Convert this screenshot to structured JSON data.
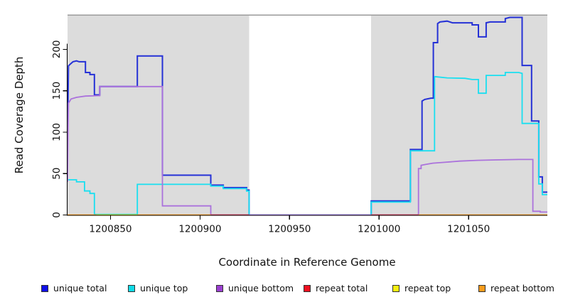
{
  "chart_data": {
    "type": "line",
    "title": "",
    "xlabel": "Coordinate in Reference Genome",
    "ylabel": "Read Coverage Depth",
    "x_ticks": [
      1200850,
      1200900,
      1200950,
      1201000,
      1201050
    ],
    "y_ticks": [
      0,
      50,
      100,
      150,
      200
    ],
    "xlim": [
      1200826,
      1201094
    ],
    "ylim": [
      0,
      241.5
    ],
    "grid": false,
    "panel_color": "#dcdcdc",
    "panel_top_border_color": "#9a9a9a",
    "axis_color": "#000000",
    "panels": [
      {
        "from": 1200826,
        "to": 1200927.4
      },
      {
        "from": 1200995.6,
        "to": 1201094
      }
    ],
    "series": [
      {
        "name": "unique total",
        "color": "#2531d6",
        "width": 2,
        "segments": [
          [
            [
              1200826,
              83
            ],
            [
              1200826.5,
              180
            ],
            [
              1200828,
              183
            ],
            [
              1200829,
              185
            ],
            [
              1200831,
              186
            ],
            [
              1200832.5,
              185
            ],
            [
              1200836,
              185
            ],
            [
              1200836,
              172
            ],
            [
              1200838.5,
              172
            ],
            [
              1200838.5,
              169.5
            ],
            [
              1200841,
              169.5
            ],
            [
              1200841,
              145
            ],
            [
              1200844,
              145
            ],
            [
              1200844,
              155
            ],
            [
              1200865,
              155
            ],
            [
              1200865,
              192
            ],
            [
              1200879,
              192
            ],
            [
              1200879,
              48
            ],
            [
              1200906,
              48
            ],
            [
              1200906,
              36
            ],
            [
              1200913,
              36
            ],
            [
              1200913,
              33
            ],
            [
              1200926,
              33
            ],
            [
              1200926,
              30
            ],
            [
              1200927.4,
              30
            ],
            [
              1200927.4,
              0
            ],
            [
              1200995.6,
              0
            ],
            [
              1200995.6,
              17
            ],
            [
              1201017.5,
              17
            ],
            [
              1201017.5,
              79
            ],
            [
              1201024,
              79
            ],
            [
              1201024,
              137.5
            ],
            [
              1201025.5,
              139.5
            ],
            [
              1201029,
              141
            ],
            [
              1201030.3,
              141
            ],
            [
              1201030.3,
              208
            ],
            [
              1201032.7,
              208
            ],
            [
              1201032.7,
              231
            ],
            [
              1201034,
              233
            ],
            [
              1201038,
              234
            ],
            [
              1201041,
              232
            ],
            [
              1201052,
              232
            ],
            [
              1201052,
              229.5
            ],
            [
              1201055.5,
              229.5
            ],
            [
              1201055.5,
              215
            ],
            [
              1201059.8,
              215
            ],
            [
              1201059.8,
              232
            ],
            [
              1201062,
              233
            ],
            [
              1201070.5,
              233
            ],
            [
              1201070.5,
              237
            ],
            [
              1201073,
              238.5
            ],
            [
              1201079.9,
              238.5
            ],
            [
              1201079.9,
              180.5
            ],
            [
              1201085.2,
              180.5
            ],
            [
              1201085.2,
              113.5
            ],
            [
              1201089.2,
              113.5
            ],
            [
              1201089.2,
              46
            ],
            [
              1201091.2,
              46
            ],
            [
              1201091.2,
              27.5
            ],
            [
              1201094,
              27.5
            ]
          ]
        ]
      },
      {
        "name": "unique top",
        "color": "#19dff0",
        "width": 1.8,
        "segments": [
          [
            [
              1200826,
              42.5
            ],
            [
              1200831,
              42.5
            ],
            [
              1200831,
              40
            ],
            [
              1200835.5,
              40
            ],
            [
              1200835.5,
              29
            ],
            [
              1200838.5,
              29
            ],
            [
              1200838.5,
              26
            ],
            [
              1200841,
              26
            ],
            [
              1200841,
              0.8
            ],
            [
              1200865,
              0.8
            ],
            [
              1200865,
              37
            ],
            [
              1200906,
              37
            ],
            [
              1200906,
              34.8
            ],
            [
              1200913,
              34.8
            ],
            [
              1200913,
              31.8
            ],
            [
              1200926,
              31.8
            ],
            [
              1200926,
              28.8
            ],
            [
              1200927.4,
              28.8
            ],
            [
              1200927.4,
              0
            ],
            [
              1200995.6,
              0
            ],
            [
              1200995.6,
              15.6
            ],
            [
              1201017.5,
              15.6
            ],
            [
              1201017.5,
              77.5
            ],
            [
              1201031,
              77.5
            ],
            [
              1201031,
              167
            ],
            [
              1201038,
              165.5
            ],
            [
              1201048,
              165
            ],
            [
              1201052,
              163.5
            ],
            [
              1201055.5,
              163.5
            ],
            [
              1201055.5,
              147
            ],
            [
              1201059.8,
              147
            ],
            [
              1201059.8,
              168.5
            ],
            [
              1201070.5,
              168.5
            ],
            [
              1201070.5,
              172
            ],
            [
              1201078,
              172
            ],
            [
              1201079.9,
              171
            ],
            [
              1201079.9,
              110.5
            ],
            [
              1201089.2,
              110.5
            ],
            [
              1201089.2,
              37.5
            ],
            [
              1201091.2,
              37.5
            ],
            [
              1201091.2,
              24.5
            ],
            [
              1201094,
              24.5
            ]
          ]
        ]
      },
      {
        "name": "unique bottom",
        "color": "#ab72dc",
        "width": 1.8,
        "segments": [
          [
            [
              1200826,
              40
            ],
            [
              1200826.5,
              135
            ],
            [
              1200828,
              140
            ],
            [
              1200831,
              142
            ],
            [
              1200836,
              143.5
            ],
            [
              1200843,
              144
            ],
            [
              1200844,
              144
            ],
            [
              1200844,
              155
            ],
            [
              1200879,
              155
            ],
            [
              1200879,
              11
            ],
            [
              1200906,
              11
            ],
            [
              1200906,
              0
            ],
            [
              1201022,
              0
            ],
            [
              1201022,
              56
            ],
            [
              1201023.5,
              56
            ],
            [
              1201023.5,
              60
            ],
            [
              1201026,
              61
            ],
            [
              1201030,
              62.5
            ],
            [
              1201036,
              63.5
            ],
            [
              1201045,
              65
            ],
            [
              1201055,
              66
            ],
            [
              1201065,
              66.5
            ],
            [
              1201078,
              67
            ],
            [
              1201085.9,
              67
            ],
            [
              1201085.9,
              4.5
            ],
            [
              1201090,
              4.5
            ],
            [
              1201090,
              3.5
            ],
            [
              1201094,
              3.5
            ]
          ]
        ]
      },
      {
        "name": "repeat total",
        "color": "#da3b55",
        "width": 1.8,
        "segments": [
          [
            [
              1200906,
              0
            ],
            [
              1200927.4,
              0
            ]
          ],
          [
            [
              1200995.6,
              0
            ],
            [
              1201022,
              0
            ]
          ]
        ]
      },
      {
        "name": "repeat top",
        "color": "#f2e10e",
        "width": 1.8,
        "segments": [
          [
            [
              1200842,
              0
            ],
            [
              1200865,
              0
            ]
          ]
        ]
      },
      {
        "name": "repeat bottom",
        "color": "#ff9e1b",
        "width": 1.8,
        "segments": [
          [
            [
              1200826,
              0
            ],
            [
              1200842,
              0
            ]
          ],
          [
            [
              1200865,
              0
            ],
            [
              1200906,
              0
            ]
          ],
          [
            [
              1201022,
              0
            ],
            [
              1201094,
              0
            ]
          ]
        ]
      }
    ],
    "legend": [
      {
        "label": "unique total",
        "color": "#0f0fe8"
      },
      {
        "label": "unique top",
        "color": "#10dbe8"
      },
      {
        "label": "unique bottom",
        "color": "#9b3fd1"
      },
      {
        "label": "repeat total",
        "color": "#ef1020"
      },
      {
        "label": "repeat top",
        "color": "#f6ef10"
      },
      {
        "label": "repeat bottom",
        "color": "#f89c1c"
      }
    ],
    "legend_position": "bottom"
  }
}
